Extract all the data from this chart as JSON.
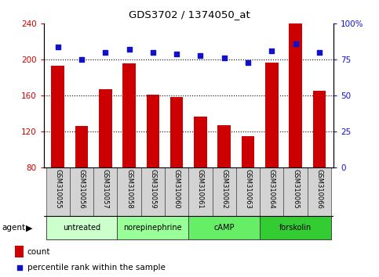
{
  "title": "GDS3702 / 1374050_at",
  "samples": [
    "GSM310055",
    "GSM310056",
    "GSM310057",
    "GSM310058",
    "GSM310059",
    "GSM310060",
    "GSM310061",
    "GSM310062",
    "GSM310063",
    "GSM310064",
    "GSM310065",
    "GSM310066"
  ],
  "counts": [
    193,
    126,
    167,
    196,
    161,
    158,
    137,
    127,
    115,
    197,
    240,
    165
  ],
  "percentiles": [
    84,
    75,
    80,
    82,
    80,
    79,
    78,
    76,
    73,
    81,
    86,
    80
  ],
  "ylim_left": [
    80,
    240
  ],
  "ylim_right": [
    0,
    100
  ],
  "yticks_left": [
    80,
    120,
    160,
    200,
    240
  ],
  "yticks_right": [
    0,
    25,
    50,
    75,
    100
  ],
  "ytick_right_labels": [
    "0",
    "25",
    "50",
    "75",
    "100%"
  ],
  "bar_color": "#cc0000",
  "dot_color": "#1111cc",
  "agent_groups": [
    {
      "label": "untreated",
      "start": 0,
      "end": 3,
      "color": "#ccffcc"
    },
    {
      "label": "norepinephrine",
      "start": 3,
      "end": 6,
      "color": "#99ff99"
    },
    {
      "label": "cAMP",
      "start": 6,
      "end": 9,
      "color": "#66ee66"
    },
    {
      "label": "forskolin",
      "start": 9,
      "end": 12,
      "color": "#33cc33"
    }
  ],
  "tick_label_bg": "#d3d3d3",
  "grid_color": "#000000",
  "legend_count_label": "count",
  "legend_pct_label": "percentile rank within the sample"
}
